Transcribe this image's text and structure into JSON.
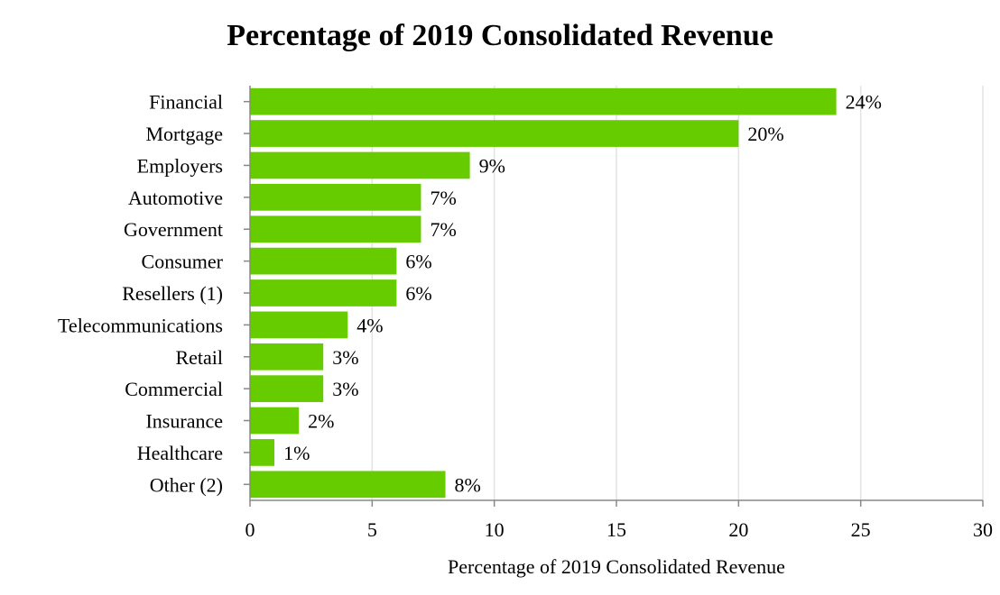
{
  "chart_data": {
    "type": "bar",
    "orientation": "horizontal",
    "title": "Percentage of 2019 Consolidated Revenue",
    "xlabel": "Percentage of 2019 Consolidated Revenue",
    "ylabel": "",
    "xlim": [
      0,
      30
    ],
    "xticks": [
      0,
      5,
      10,
      15,
      20,
      25,
      30
    ],
    "grid": true,
    "legend": "none",
    "bar_color": "#66cc00",
    "categories": [
      "Financial",
      "Mortgage",
      "Employers",
      "Automotive",
      "Government",
      "Consumer",
      "Resellers (1)",
      "Telecommunications",
      "Retail",
      "Commercial",
      "Insurance",
      "Healthcare",
      "Other (2)"
    ],
    "values": [
      24,
      20,
      9,
      7,
      7,
      6,
      6,
      4,
      3,
      3,
      2,
      1,
      8
    ],
    "data_labels": [
      "24%",
      "20%",
      "9%",
      "7%",
      "7%",
      "6%",
      "6%",
      "4%",
      "3%",
      "3%",
      "2%",
      "1%",
      "8%"
    ]
  }
}
